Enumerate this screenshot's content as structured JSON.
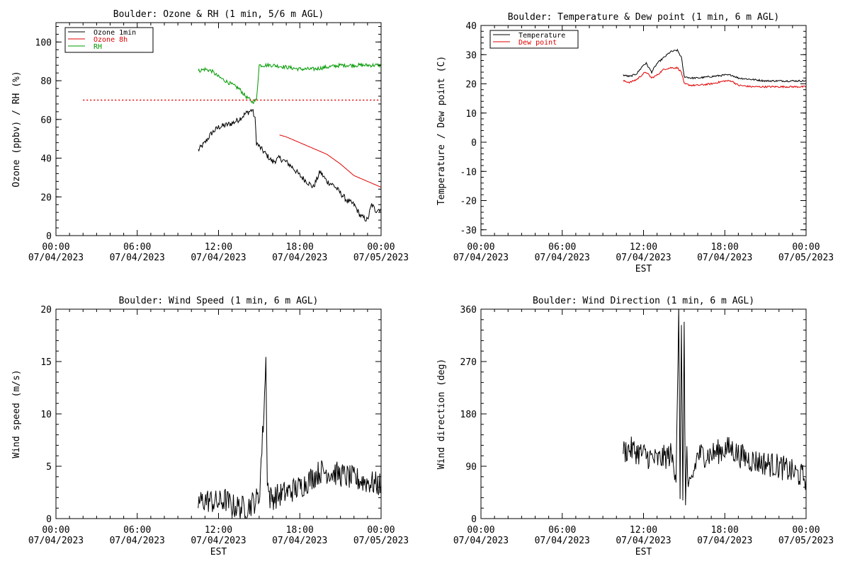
{
  "chart_data": [
    {
      "type": "line",
      "title": "Boulder: Ozone & RH (1 min, 5/6 m AGL)",
      "xlabel": "",
      "ylabel": "Ozone (ppbv) / RH (%)",
      "xlim": [
        0,
        24
      ],
      "ylim": [
        0,
        110
      ],
      "yticks": [
        0,
        20,
        40,
        60,
        80,
        100
      ],
      "xticks": [
        {
          "time": "00:00",
          "date": "07/04/2023"
        },
        {
          "time": "06:00",
          "date": "07/04/2023"
        },
        {
          "time": "12:00",
          "date": "07/04/2023"
        },
        {
          "time": "18:00",
          "date": "07/04/2023"
        },
        {
          "time": "00:00",
          "date": "07/05/2023"
        }
      ],
      "legend": {
        "position": "top-left",
        "entries": [
          {
            "label": "Ozone 1min",
            "color": "#000000"
          },
          {
            "label": "Ozone 8h",
            "color": "#e00000"
          },
          {
            "label": "RH",
            "color": "#009900"
          }
        ]
      },
      "reference_line": {
        "y": 70,
        "color": "#e00000",
        "x_start": 2,
        "x_end": 24,
        "style": "dotted"
      },
      "series": [
        {
          "name": "Ozone 1min",
          "color": "#000000",
          "noise": 1.5,
          "x": [
            10.5,
            11,
            11.5,
            12,
            12.5,
            13,
            13.5,
            14,
            14.5,
            14.7,
            14.8,
            15,
            15.5,
            16,
            16.5,
            17,
            17.5,
            18,
            18.5,
            19,
            19.5,
            20,
            20.5,
            21,
            21.5,
            22,
            22.5,
            23,
            23.3,
            23.6,
            24
          ],
          "y": [
            44,
            48,
            53,
            56,
            57,
            58,
            60,
            63,
            65,
            60,
            48,
            46,
            42,
            38,
            40,
            38,
            35,
            31,
            28,
            25,
            33,
            28,
            26,
            22,
            18,
            16,
            10,
            8,
            16,
            13,
            14
          ]
        },
        {
          "name": "Ozone 8h",
          "color": "#e00000",
          "noise": 0,
          "x": [
            16.5,
            17,
            18,
            19,
            20,
            21,
            22,
            23,
            24
          ],
          "y": [
            52,
            51,
            48,
            45,
            42,
            37,
            31,
            28,
            25
          ]
        },
        {
          "name": "RH",
          "color": "#009900",
          "noise": 1.0,
          "x": [
            10.5,
            11,
            11.5,
            12,
            12.5,
            13,
            13.5,
            14,
            14.5,
            14.8,
            15,
            15.5,
            16,
            17,
            18,
            19,
            20,
            21,
            22,
            23,
            24
          ],
          "y": [
            85,
            86,
            85,
            82,
            80,
            78,
            76,
            72,
            69,
            70,
            88,
            88,
            88,
            87,
            86,
            86,
            87,
            88,
            88,
            88,
            88
          ]
        }
      ]
    },
    {
      "type": "line",
      "title": "Boulder: Temperature & Dew point (1 min, 6 m AGL)",
      "xlabel": "EST",
      "ylabel": "Temperature / Dew point (C)",
      "xlim": [
        0,
        24
      ],
      "ylim": [
        -32,
        40
      ],
      "yticks": [
        -30,
        -20,
        -10,
        0,
        10,
        20,
        30,
        40
      ],
      "xticks": [
        {
          "time": "00:00",
          "date": "07/04/2023"
        },
        {
          "time": "06:00",
          "date": "07/04/2023"
        },
        {
          "time": "12:00",
          "date": "07/04/2023"
        },
        {
          "time": "18:00",
          "date": "07/04/2023"
        },
        {
          "time": "00:00",
          "date": "07/05/2023"
        }
      ],
      "legend": {
        "position": "top-left",
        "entries": [
          {
            "label": "Temperature",
            "color": "#000000"
          },
          {
            "label": "Dew point",
            "color": "#e00000"
          }
        ]
      },
      "series": [
        {
          "name": "Temperature",
          "color": "#000000",
          "noise": 0.3,
          "x": [
            10.5,
            11,
            11.5,
            12,
            12.2,
            12.6,
            13,
            13.5,
            14,
            14.5,
            14.8,
            15,
            15.5,
            16,
            17,
            18,
            18.5,
            19,
            20,
            21,
            22,
            23,
            24
          ],
          "y": [
            23,
            22.5,
            23.5,
            26.5,
            27,
            24,
            27,
            29,
            31,
            31.5,
            29,
            22.5,
            22,
            22,
            22.5,
            23,
            23,
            22,
            21.5,
            21,
            21,
            21,
            21
          ]
        },
        {
          "name": "Dew point",
          "color": "#e00000",
          "noise": 0.3,
          "x": [
            10.5,
            11,
            11.5,
            12,
            12.2,
            12.6,
            13,
            13.5,
            14,
            14.5,
            14.8,
            15,
            15.5,
            16,
            17,
            18,
            18.5,
            19,
            20,
            21,
            22,
            23,
            24
          ],
          "y": [
            21,
            20.5,
            21.5,
            23.5,
            24,
            22,
            23,
            25,
            25.5,
            25.5,
            24,
            20,
            19.5,
            19.5,
            20,
            21,
            21,
            19.5,
            19,
            19,
            19,
            19,
            19
          ]
        }
      ]
    },
    {
      "type": "line",
      "title": "Boulder: Wind Speed (1 min, 6 m AGL)",
      "xlabel": "EST",
      "ylabel": "Wind speed (m/s)",
      "xlim": [
        0,
        24
      ],
      "ylim": [
        0,
        20
      ],
      "yticks": [
        0,
        5,
        10,
        15,
        20
      ],
      "xticks": [
        {
          "time": "00:00",
          "date": "07/04/2023"
        },
        {
          "time": "06:00",
          "date": "07/04/2023"
        },
        {
          "time": "12:00",
          "date": "07/04/2023"
        },
        {
          "time": "18:00",
          "date": "07/04/2023"
        },
        {
          "time": "00:00",
          "date": "07/05/2023"
        }
      ],
      "series": [
        {
          "name": "",
          "color": "#000000",
          "noise": 1.2,
          "x": [
            10.5,
            11,
            12,
            12.5,
            13,
            14,
            14.5,
            15,
            15.3,
            15.5,
            15.6,
            15.7,
            15.8,
            16,
            17,
            18,
            19,
            19.5,
            20,
            21,
            22,
            23,
            24
          ],
          "y": [
            1.5,
            1.8,
            1.5,
            1.8,
            1.2,
            1.0,
            1.5,
            2.0,
            9,
            15,
            4,
            2.5,
            2.0,
            2.0,
            2.5,
            3.0,
            4.0,
            4.5,
            4.5,
            4.2,
            3.8,
            3.5,
            3.2
          ]
        }
      ]
    },
    {
      "type": "line",
      "title": "Boulder: Wind Direction (1 min, 6 m AGL)",
      "xlabel": "EST",
      "ylabel": "Wind direction (deg)",
      "xlim": [
        0,
        24
      ],
      "ylim": [
        0,
        360
      ],
      "yticks": [
        0,
        90,
        180,
        270,
        360
      ],
      "xticks": [
        {
          "time": "00:00",
          "date": "07/04/2023"
        },
        {
          "time": "06:00",
          "date": "07/04/2023"
        },
        {
          "time": "12:00",
          "date": "07/04/2023"
        },
        {
          "time": "18:00",
          "date": "07/04/2023"
        },
        {
          "time": "00:00",
          "date": "07/05/2023"
        }
      ],
      "series": [
        {
          "name": "",
          "color": "#000000",
          "noise": 22,
          "x": [
            10.5,
            11,
            12,
            13,
            14,
            14.4,
            14.6,
            14.7,
            14.8,
            14.9,
            15.0,
            15.1,
            15.2,
            15.3,
            15.5,
            16,
            17,
            18,
            18.5,
            19,
            20,
            21,
            22,
            23,
            24
          ],
          "y": [
            115,
            120,
            110,
            100,
            110,
            80,
            355,
            20,
            350,
            10,
            340,
            15,
            120,
            40,
            60,
            110,
            110,
            120,
            120,
            110,
            100,
            95,
            90,
            80,
            70
          ]
        }
      ]
    }
  ]
}
